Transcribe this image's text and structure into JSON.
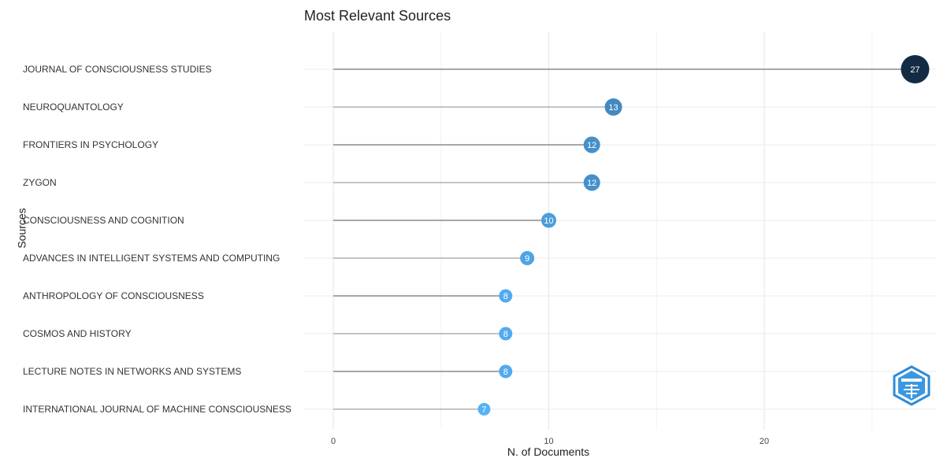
{
  "chart_data": {
    "type": "lollipop",
    "title": "Most Relevant Sources",
    "xlabel": "N. of Documents",
    "ylabel": "Sources",
    "xlim": [
      0,
      28
    ],
    "xticks": [
      0,
      10,
      20
    ],
    "grid": true,
    "categories": [
      "JOURNAL OF CONSCIOUSNESS STUDIES",
      "NEUROQUANTOLOGY",
      "FRONTIERS IN PSYCHOLOGY",
      "ZYGON",
      "CONSCIOUSNESS AND COGNITION",
      "ADVANCES IN INTELLIGENT SYSTEMS AND COMPUTING",
      "ANTHROPOLOGY OF CONSCIOUSNESS",
      "COSMOS AND HISTORY",
      "LECTURE NOTES IN NETWORKS AND SYSTEMS",
      "INTERNATIONAL JOURNAL OF MACHINE CONSCIOUSNESS"
    ],
    "values": [
      27,
      13,
      12,
      12,
      10,
      9,
      8,
      8,
      8,
      7
    ],
    "color_scale": {
      "low": "#56b1f7",
      "high": "#132b43"
    }
  }
}
